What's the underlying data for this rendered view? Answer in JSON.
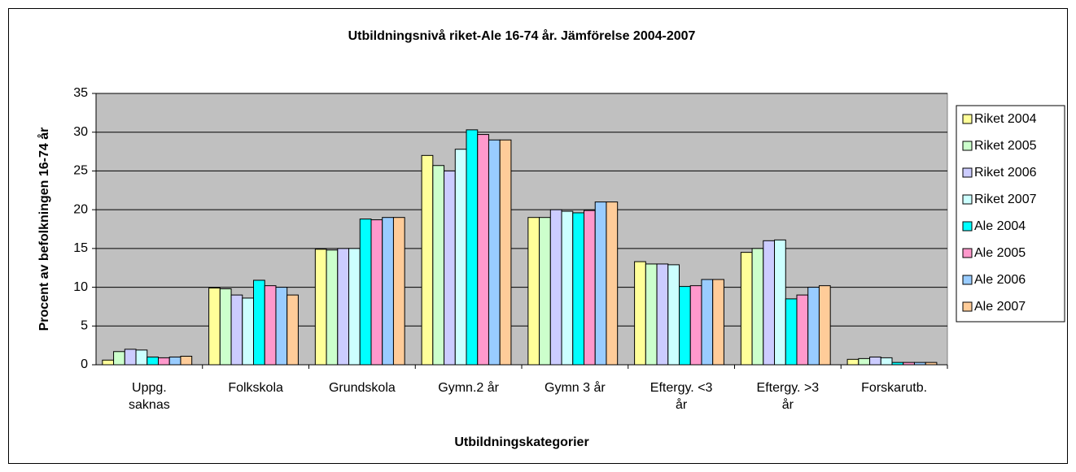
{
  "chart_data": {
    "type": "bar",
    "title": "Utbildningsnivå riket-Ale 16-74 år. Jämförelse 2004-2007",
    "x_label": "Utbildningskategorier",
    "y_label": "Procent av befolkningen 16-74 år",
    "categories": [
      "Uppg. saknas",
      "Folkskola",
      "Grundskola",
      "Gymn.2 år",
      "Gymn 3 år",
      "Eftergy. <3 år",
      "Eftergy. >3 år",
      "Forskarutb."
    ],
    "series": [
      {
        "name": "Riket 2004",
        "color": "#ffff99",
        "values": [
          0.6,
          9.9,
          14.9,
          27.0,
          19.0,
          13.3,
          14.5,
          0.7
        ]
      },
      {
        "name": "Riket 2005",
        "color": "#ccffcc",
        "values": [
          1.7,
          9.8,
          14.8,
          25.7,
          19.0,
          13.0,
          15.0,
          0.8
        ]
      },
      {
        "name": "Riket 2006",
        "color": "#ccccff",
        "values": [
          2.0,
          9.0,
          15.0,
          25.0,
          20.0,
          13.0,
          16.0,
          1.0
        ]
      },
      {
        "name": "Riket 2007",
        "color": "#ccffff",
        "values": [
          1.9,
          8.6,
          15.0,
          27.8,
          19.8,
          12.9,
          16.1,
          0.9
        ]
      },
      {
        "name": "Ale 2004",
        "color": "#00ffff",
        "values": [
          1.0,
          10.9,
          18.8,
          30.3,
          19.6,
          10.1,
          8.5,
          0.3
        ]
      },
      {
        "name": "Ale 2005",
        "color": "#ff99cc",
        "values": [
          0.9,
          10.2,
          18.7,
          29.7,
          19.9,
          10.2,
          9.0,
          0.3
        ]
      },
      {
        "name": "Ale 2006",
        "color": "#99ccff",
        "values": [
          1.0,
          10.0,
          19.0,
          29.0,
          21.0,
          11.0,
          10.0,
          0.3
        ]
      },
      {
        "name": "Ale 2007",
        "color": "#ffcc99",
        "values": [
          1.1,
          9.0,
          19.0,
          29.0,
          21.0,
          11.0,
          10.2,
          0.3
        ]
      }
    ],
    "ylim": [
      0,
      35
    ],
    "yticks": [
      0,
      5,
      10,
      15,
      20,
      25,
      30,
      35
    ],
    "grid": true,
    "legend": "right"
  }
}
